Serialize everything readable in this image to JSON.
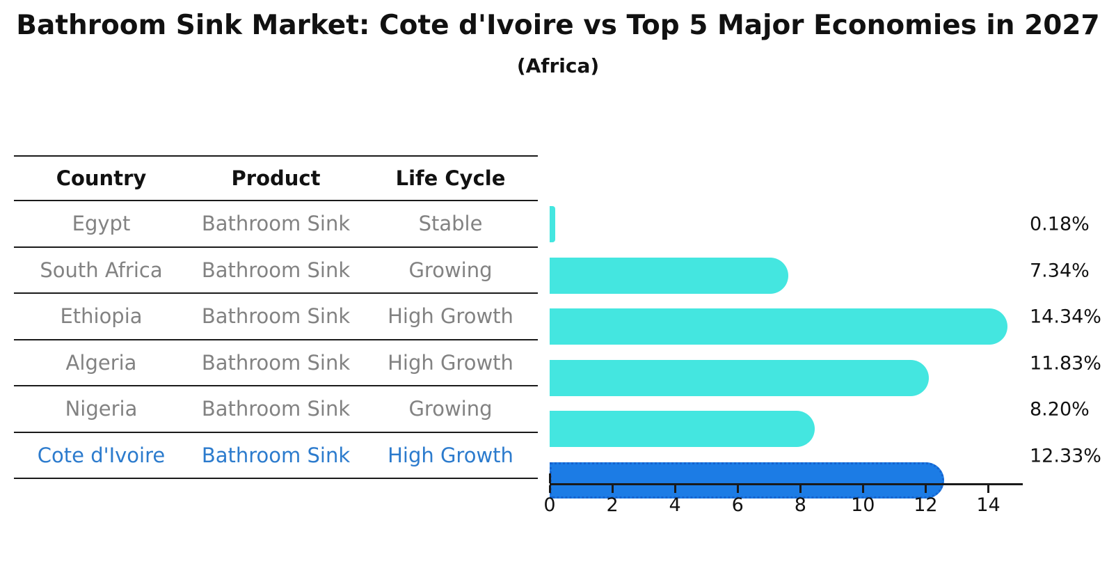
{
  "title": "Bathroom Sink Market: Cote d'Ivoire vs Top 5 Major Economies in 2027",
  "subtitle": "(Africa)",
  "table": {
    "headers": [
      "Country",
      "Product",
      "Life Cycle"
    ],
    "rows": [
      {
        "country": "Egypt",
        "product": "Bathroom Sink",
        "life_cycle": "Stable",
        "highlight": false
      },
      {
        "country": "South Africa",
        "product": "Bathroom Sink",
        "life_cycle": "Growing",
        "highlight": false
      },
      {
        "country": "Ethiopia",
        "product": "Bathroom Sink",
        "life_cycle": "High Growth",
        "highlight": false
      },
      {
        "country": "Algeria",
        "product": "Bathroom Sink",
        "life_cycle": "High Growth",
        "highlight": false
      },
      {
        "country": "Nigeria",
        "product": "Bathroom Sink",
        "life_cycle": "Growing",
        "highlight": false
      },
      {
        "country": "Cote d'Ivoire",
        "product": "Bathroom Sink",
        "life_cycle": "High Growth",
        "highlight": true
      }
    ]
  },
  "chart_data": {
    "type": "bar",
    "orientation": "horizontal",
    "title": "Bathroom Sink Market: Cote d'Ivoire vs Top 5 Major Economies in 2027",
    "subtitle": "(Africa)",
    "categories": [
      "Egypt",
      "South Africa",
      "Ethiopia",
      "Algeria",
      "Nigeria",
      "Cote d'Ivoire"
    ],
    "values": [
      0.18,
      7.34,
      14.34,
      11.83,
      8.2,
      12.33
    ],
    "value_labels": [
      "0.18%",
      "7.34%",
      "14.34%",
      "11.83%",
      "8.20%",
      "12.33%"
    ],
    "highlight_index": 5,
    "xlabel": "",
    "ylabel": "",
    "xlim": [
      0,
      15.1
    ],
    "xticks": [
      0,
      2,
      4,
      6,
      8,
      10,
      12,
      14
    ],
    "grid": false,
    "legend": false,
    "bar_color": "#44E6E0",
    "highlight_bar_color": "#1C7CE5",
    "highlight_border_color": "#1563CF",
    "highlight_text_color": "#2C7BCD",
    "row_text_color": "#828282"
  }
}
